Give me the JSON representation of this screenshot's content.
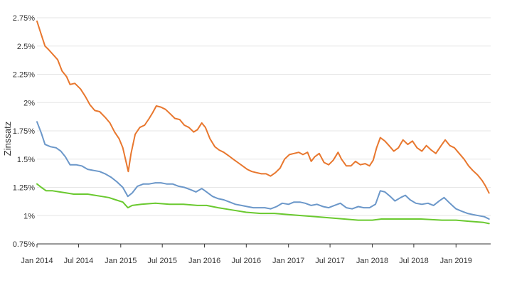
{
  "chart_data": {
    "type": "line",
    "ylabel": "Zinssatz",
    "xlabel": "",
    "title": "",
    "grid": true,
    "ylim": [
      0.75,
      2.75
    ],
    "y_ticks": [
      0.75,
      1,
      1.25,
      1.5,
      1.75,
      2,
      2.25,
      2.5,
      2.75
    ],
    "y_tick_labels": [
      "0.75%",
      "1%",
      "1.25%",
      "1.5%",
      "1.75%",
      "2%",
      "2.25%",
      "2.5%",
      "2.75%"
    ],
    "xlim": [
      "2014-01-01",
      "2019-06-01"
    ],
    "x_ticks": [
      "2014-01-01",
      "2014-07-01",
      "2015-01-01",
      "2015-07-01",
      "2016-01-01",
      "2016-07-01",
      "2017-01-01",
      "2017-07-01",
      "2018-01-01",
      "2018-07-01",
      "2019-01-01"
    ],
    "x_tick_labels": [
      "Jan 2014",
      "Jul 2014",
      "Jan 2015",
      "Jul 2015",
      "Jan 2016",
      "Jul 2016",
      "Jan 2017",
      "Jul 2017",
      "Jan 2018",
      "Jul 2018",
      "Jan 2019"
    ],
    "series": [
      {
        "color": "#e8772e",
        "points": [
          [
            "2014-01-01",
            2.72
          ],
          [
            "2014-01-20",
            2.6
          ],
          [
            "2014-02-05",
            2.5
          ],
          [
            "2014-02-20",
            2.47
          ],
          [
            "2014-03-10",
            2.43
          ],
          [
            "2014-04-01",
            2.38
          ],
          [
            "2014-04-20",
            2.28
          ],
          [
            "2014-05-10",
            2.23
          ],
          [
            "2014-05-25",
            2.16
          ],
          [
            "2014-06-15",
            2.17
          ],
          [
            "2014-07-10",
            2.12
          ],
          [
            "2014-08-01",
            2.05
          ],
          [
            "2014-08-20",
            1.98
          ],
          [
            "2014-09-10",
            1.93
          ],
          [
            "2014-10-01",
            1.92
          ],
          [
            "2014-10-25",
            1.87
          ],
          [
            "2014-11-15",
            1.82
          ],
          [
            "2014-12-05",
            1.74
          ],
          [
            "2014-12-25",
            1.68
          ],
          [
            "2015-01-10",
            1.6
          ],
          [
            "2015-01-25",
            1.47
          ],
          [
            "2015-02-03",
            1.39
          ],
          [
            "2015-02-15",
            1.55
          ],
          [
            "2015-03-05",
            1.72
          ],
          [
            "2015-03-25",
            1.78
          ],
          [
            "2015-04-15",
            1.8
          ],
          [
            "2015-05-05",
            1.86
          ],
          [
            "2015-05-20",
            1.91
          ],
          [
            "2015-06-05",
            1.97
          ],
          [
            "2015-06-25",
            1.96
          ],
          [
            "2015-07-15",
            1.94
          ],
          [
            "2015-08-05",
            1.9
          ],
          [
            "2015-08-25",
            1.86
          ],
          [
            "2015-09-15",
            1.85
          ],
          [
            "2015-10-05",
            1.8
          ],
          [
            "2015-10-25",
            1.78
          ],
          [
            "2015-11-15",
            1.74
          ],
          [
            "2015-12-01",
            1.76
          ],
          [
            "2015-12-20",
            1.82
          ],
          [
            "2016-01-05",
            1.78
          ],
          [
            "2016-01-25",
            1.68
          ],
          [
            "2016-02-15",
            1.61
          ],
          [
            "2016-03-05",
            1.58
          ],
          [
            "2016-03-25",
            1.56
          ],
          [
            "2016-04-15",
            1.53
          ],
          [
            "2016-05-05",
            1.5
          ],
          [
            "2016-05-25",
            1.47
          ],
          [
            "2016-06-15",
            1.44
          ],
          [
            "2016-07-05",
            1.41
          ],
          [
            "2016-07-25",
            1.39
          ],
          [
            "2016-08-15",
            1.38
          ],
          [
            "2016-09-05",
            1.37
          ],
          [
            "2016-09-25",
            1.37
          ],
          [
            "2016-10-15",
            1.35
          ],
          [
            "2016-11-05",
            1.38
          ],
          [
            "2016-11-25",
            1.42
          ],
          [
            "2016-12-15",
            1.5
          ],
          [
            "2017-01-05",
            1.54
          ],
          [
            "2017-01-25",
            1.55
          ],
          [
            "2017-02-15",
            1.56
          ],
          [
            "2017-03-05",
            1.54
          ],
          [
            "2017-03-25",
            1.56
          ],
          [
            "2017-04-10",
            1.48
          ],
          [
            "2017-04-25",
            1.52
          ],
          [
            "2017-05-15",
            1.55
          ],
          [
            "2017-06-05",
            1.47
          ],
          [
            "2017-06-25",
            1.45
          ],
          [
            "2017-07-15",
            1.49
          ],
          [
            "2017-08-05",
            1.56
          ],
          [
            "2017-08-20",
            1.5
          ],
          [
            "2017-09-10",
            1.44
          ],
          [
            "2017-09-30",
            1.44
          ],
          [
            "2017-10-20",
            1.48
          ],
          [
            "2017-11-10",
            1.45
          ],
          [
            "2017-12-01",
            1.46
          ],
          [
            "2017-12-20",
            1.44
          ],
          [
            "2018-01-05",
            1.49
          ],
          [
            "2018-01-20",
            1.6
          ],
          [
            "2018-02-05",
            1.69
          ],
          [
            "2018-02-25",
            1.66
          ],
          [
            "2018-03-15",
            1.62
          ],
          [
            "2018-04-05",
            1.57
          ],
          [
            "2018-04-25",
            1.6
          ],
          [
            "2018-05-15",
            1.67
          ],
          [
            "2018-06-05",
            1.63
          ],
          [
            "2018-06-25",
            1.66
          ],
          [
            "2018-07-15",
            1.6
          ],
          [
            "2018-08-05",
            1.57
          ],
          [
            "2018-08-25",
            1.62
          ],
          [
            "2018-09-15",
            1.58
          ],
          [
            "2018-10-05",
            1.55
          ],
          [
            "2018-10-25",
            1.61
          ],
          [
            "2018-11-15",
            1.67
          ],
          [
            "2018-12-05",
            1.62
          ],
          [
            "2018-12-25",
            1.6
          ],
          [
            "2019-01-15",
            1.55
          ],
          [
            "2019-02-05",
            1.5
          ],
          [
            "2019-02-25",
            1.44
          ],
          [
            "2019-03-15",
            1.4
          ],
          [
            "2019-04-05",
            1.36
          ],
          [
            "2019-04-25",
            1.31
          ],
          [
            "2019-05-10",
            1.26
          ],
          [
            "2019-05-25",
            1.2
          ]
        ]
      },
      {
        "color": "#6b97c9",
        "points": [
          [
            "2014-01-01",
            1.83
          ],
          [
            "2014-01-20",
            1.73
          ],
          [
            "2014-02-05",
            1.63
          ],
          [
            "2014-03-01",
            1.61
          ],
          [
            "2014-03-25",
            1.6
          ],
          [
            "2014-04-15",
            1.57
          ],
          [
            "2014-05-05",
            1.52
          ],
          [
            "2014-05-25",
            1.45
          ],
          [
            "2014-06-20",
            1.45
          ],
          [
            "2014-07-15",
            1.44
          ],
          [
            "2014-08-10",
            1.41
          ],
          [
            "2014-09-05",
            1.4
          ],
          [
            "2014-10-01",
            1.39
          ],
          [
            "2014-10-25",
            1.37
          ],
          [
            "2014-11-20",
            1.34
          ],
          [
            "2014-12-15",
            1.3
          ],
          [
            "2015-01-10",
            1.25
          ],
          [
            "2015-02-01",
            1.17
          ],
          [
            "2015-02-20",
            1.2
          ],
          [
            "2015-03-15",
            1.26
          ],
          [
            "2015-04-10",
            1.28
          ],
          [
            "2015-05-05",
            1.28
          ],
          [
            "2015-06-01",
            1.29
          ],
          [
            "2015-06-25",
            1.29
          ],
          [
            "2015-07-20",
            1.28
          ],
          [
            "2015-08-15",
            1.28
          ],
          [
            "2015-09-10",
            1.26
          ],
          [
            "2015-10-05",
            1.25
          ],
          [
            "2015-11-01",
            1.23
          ],
          [
            "2015-11-25",
            1.21
          ],
          [
            "2015-12-20",
            1.24
          ],
          [
            "2016-01-10",
            1.21
          ],
          [
            "2016-02-05",
            1.17
          ],
          [
            "2016-03-01",
            1.15
          ],
          [
            "2016-03-25",
            1.14
          ],
          [
            "2016-04-20",
            1.12
          ],
          [
            "2016-05-15",
            1.1
          ],
          [
            "2016-06-10",
            1.09
          ],
          [
            "2016-07-05",
            1.08
          ],
          [
            "2016-08-01",
            1.07
          ],
          [
            "2016-08-25",
            1.07
          ],
          [
            "2016-09-20",
            1.07
          ],
          [
            "2016-10-15",
            1.06
          ],
          [
            "2016-11-10",
            1.08
          ],
          [
            "2016-12-05",
            1.11
          ],
          [
            "2017-01-01",
            1.1
          ],
          [
            "2017-01-25",
            1.12
          ],
          [
            "2017-02-20",
            1.12
          ],
          [
            "2017-03-15",
            1.11
          ],
          [
            "2017-04-10",
            1.09
          ],
          [
            "2017-05-05",
            1.1
          ],
          [
            "2017-06-01",
            1.08
          ],
          [
            "2017-06-25",
            1.07
          ],
          [
            "2017-07-20",
            1.09
          ],
          [
            "2017-08-15",
            1.11
          ],
          [
            "2017-09-10",
            1.07
          ],
          [
            "2017-10-05",
            1.06
          ],
          [
            "2017-11-01",
            1.08
          ],
          [
            "2017-11-25",
            1.07
          ],
          [
            "2017-12-20",
            1.07
          ],
          [
            "2018-01-15",
            1.1
          ],
          [
            "2018-02-05",
            1.22
          ],
          [
            "2018-02-25",
            1.21
          ],
          [
            "2018-03-20",
            1.17
          ],
          [
            "2018-04-10",
            1.13
          ],
          [
            "2018-05-05",
            1.16
          ],
          [
            "2018-05-25",
            1.18
          ],
          [
            "2018-06-15",
            1.14
          ],
          [
            "2018-07-10",
            1.11
          ],
          [
            "2018-08-05",
            1.1
          ],
          [
            "2018-09-01",
            1.11
          ],
          [
            "2018-09-25",
            1.09
          ],
          [
            "2018-10-20",
            1.13
          ],
          [
            "2018-11-10",
            1.16
          ],
          [
            "2018-12-05",
            1.11
          ],
          [
            "2019-01-01",
            1.06
          ],
          [
            "2019-01-25",
            1.04
          ],
          [
            "2019-02-20",
            1.02
          ],
          [
            "2019-03-15",
            1.01
          ],
          [
            "2019-04-10",
            1.0
          ],
          [
            "2019-05-05",
            0.99
          ],
          [
            "2019-05-25",
            0.97
          ]
        ]
      },
      {
        "color": "#6ac92f",
        "points": [
          [
            "2014-01-01",
            1.28
          ],
          [
            "2014-01-20",
            1.25
          ],
          [
            "2014-02-10",
            1.22
          ],
          [
            "2014-03-10",
            1.22
          ],
          [
            "2014-04-10",
            1.21
          ],
          [
            "2014-05-10",
            1.2
          ],
          [
            "2014-06-10",
            1.19
          ],
          [
            "2014-07-10",
            1.19
          ],
          [
            "2014-08-10",
            1.19
          ],
          [
            "2014-09-10",
            1.18
          ],
          [
            "2014-10-10",
            1.17
          ],
          [
            "2014-11-10",
            1.16
          ],
          [
            "2014-12-10",
            1.14
          ],
          [
            "2015-01-10",
            1.12
          ],
          [
            "2015-02-01",
            1.07
          ],
          [
            "2015-02-20",
            1.09
          ],
          [
            "2015-04-01",
            1.1
          ],
          [
            "2015-06-01",
            1.11
          ],
          [
            "2015-08-01",
            1.1
          ],
          [
            "2015-10-01",
            1.1
          ],
          [
            "2015-12-01",
            1.09
          ],
          [
            "2016-01-10",
            1.09
          ],
          [
            "2016-03-01",
            1.07
          ],
          [
            "2016-05-01",
            1.05
          ],
          [
            "2016-07-01",
            1.03
          ],
          [
            "2016-09-01",
            1.02
          ],
          [
            "2016-11-01",
            1.02
          ],
          [
            "2017-01-01",
            1.01
          ],
          [
            "2017-03-01",
            1.0
          ],
          [
            "2017-05-01",
            0.99
          ],
          [
            "2017-07-01",
            0.98
          ],
          [
            "2017-09-01",
            0.97
          ],
          [
            "2017-11-01",
            0.96
          ],
          [
            "2018-01-01",
            0.96
          ],
          [
            "2018-02-10",
            0.97
          ],
          [
            "2018-05-01",
            0.97
          ],
          [
            "2018-08-01",
            0.97
          ],
          [
            "2018-11-01",
            0.96
          ],
          [
            "2019-01-01",
            0.96
          ],
          [
            "2019-03-01",
            0.95
          ],
          [
            "2019-05-01",
            0.94
          ],
          [
            "2019-05-25",
            0.93
          ]
        ]
      }
    ]
  }
}
